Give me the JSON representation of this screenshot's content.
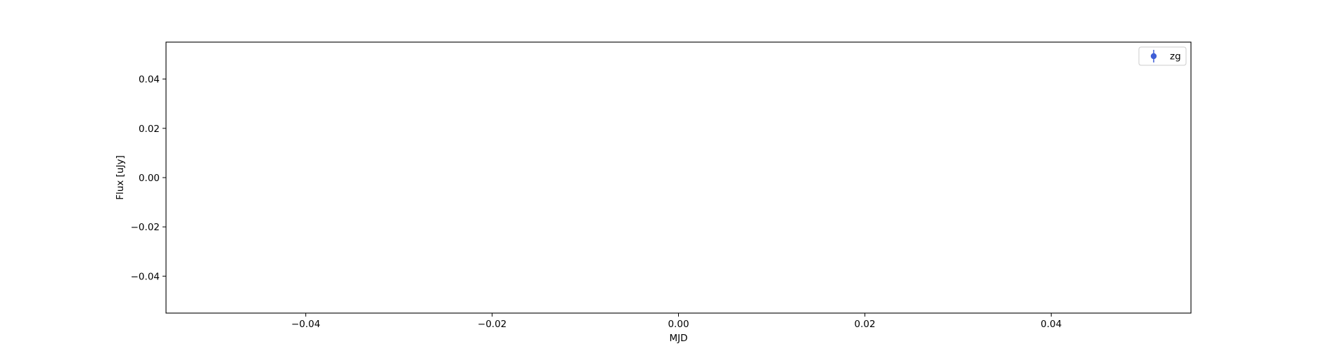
{
  "chart_data": {
    "type": "scatter",
    "title": "",
    "xlabel": "MJD",
    "ylabel": "Flux [uJy]",
    "xlim": [
      -0.055,
      0.055
    ],
    "ylim": [
      -0.055,
      0.055
    ],
    "x_ticks": [
      -0.04,
      -0.02,
      0.0,
      0.02,
      0.04
    ],
    "x_tick_labels": [
      "−0.04",
      "−0.02",
      "0.00",
      "0.02",
      "0.04"
    ],
    "y_ticks": [
      -0.04,
      -0.02,
      0.0,
      0.02,
      0.04
    ],
    "y_tick_labels": [
      "−0.04",
      "−0.02",
      "0.00",
      "0.02",
      "0.04"
    ],
    "grid": false,
    "legend_position": "top-right",
    "series": [
      {
        "name": "zg",
        "color": "#3f5ed6",
        "marker": "errorbar-point",
        "x": [],
        "y": [],
        "yerr": []
      }
    ]
  }
}
